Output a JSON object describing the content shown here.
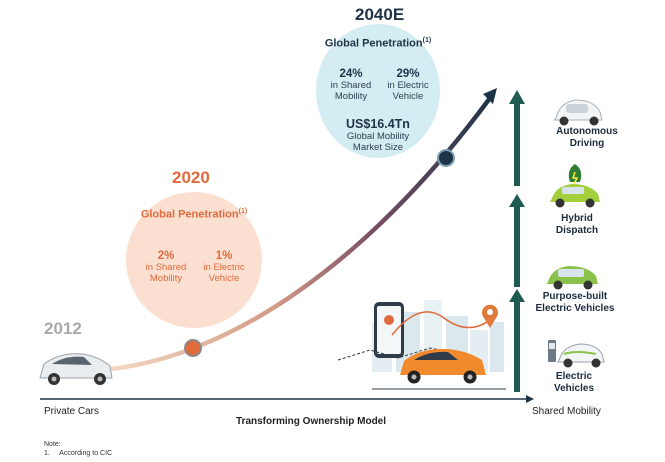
{
  "years": {
    "y2012": "2012",
    "y2020": "2020",
    "y2040": "2040E"
  },
  "bubble_2040": {
    "title": "Global Penetration",
    "footnote_mark": "(1)",
    "stats": [
      {
        "value": "24%",
        "label_line1": "in Shared",
        "label_line2": "Mobility"
      },
      {
        "value": "29%",
        "label_line1": "in Electric",
        "label_line2": "Vehicle"
      }
    ],
    "market_value": "US$16.4Tn",
    "market_label_line1": "Global Mobility",
    "market_label_line2": "Market Size"
  },
  "bubble_2020": {
    "title": "Global Penetration",
    "footnote_mark": "(1)",
    "stats": [
      {
        "value": "2%",
        "label_line1": "in Shared",
        "label_line2": "Mobility"
      },
      {
        "value": "1%",
        "label_line1": "in Electric",
        "label_line2": "Vehicle"
      }
    ]
  },
  "axis": {
    "left": "Private Cars",
    "center": "Transforming Ownership Model",
    "right": "Shared Mobility"
  },
  "stages": [
    {
      "line1": "Autonomous",
      "line2": "Driving"
    },
    {
      "line1": "Hybrid",
      "line2": "Dispatch"
    },
    {
      "line1": "Purpose-built",
      "line2": "Electric Vehicles"
    },
    {
      "line1": "Electric",
      "line2": "Vehicles"
    }
  ],
  "note": {
    "heading": "Note:",
    "item": "1.     According to CIC"
  },
  "colors": {
    "curve_start": "#f4c9a8",
    "curve_mid": "#b06a63",
    "curve_end": "#1f3347",
    "orange": "#e06a3c",
    "teal_arrow": "#1e5c52",
    "dark_navy": "#1f3347"
  }
}
